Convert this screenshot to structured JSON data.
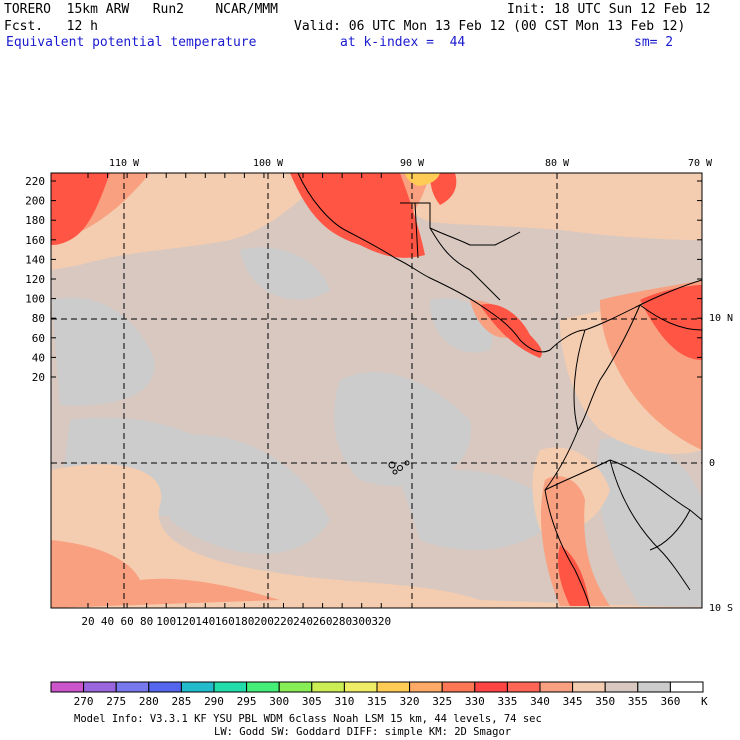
{
  "header": {
    "model": "TORERO  15km ARW   Run2    NCAR/MMM",
    "init": "Init: 18 UTC Sun 12 Feb 12",
    "fcst": "Fcst.   12 h",
    "valid": "Valid: 06 UTC Mon 13 Feb 12 (00 CST Mon 13 Feb 12)",
    "field": "Equivalent potential temperature",
    "level": "at k-index =  44",
    "smooth": "sm= 2"
  },
  "axes": {
    "lon_labels": [
      "110 W",
      "100 W",
      "90 W",
      "80 W",
      "70 W"
    ],
    "lat_labels": [
      "10 N",
      "0",
      "10 S"
    ],
    "y_ticks": [
      "220",
      "200",
      "180",
      "160",
      "140",
      "120",
      "100",
      "80",
      "60",
      "40",
      "20"
    ],
    "x_ticks": [
      "20",
      "40",
      "60",
      "80",
      "100",
      "120",
      "140",
      "160",
      "180",
      "200",
      "220",
      "240",
      "260",
      "280",
      "300",
      "320"
    ]
  },
  "colorbar": {
    "labels": [
      "270",
      "275",
      "280",
      "285",
      "290",
      "295",
      "300",
      "305",
      "310",
      "315",
      "320",
      "325",
      "330",
      "335",
      "340",
      "345",
      "350",
      "355",
      "360"
    ],
    "unit": "K",
    "colors": [
      "#cc55cc",
      "#9966dd",
      "#7777ee",
      "#5566ee",
      "#22bbcc",
      "#22ddaa",
      "#44ee77",
      "#88ee55",
      "#ccee55",
      "#eeee66",
      "#ffcc55",
      "#ffaa66",
      "#ff7755",
      "#ff4444",
      "#ff6655",
      "#f8a080",
      "#f4ccb0",
      "#d8c8c0",
      "#cccccc",
      "#ffffff"
    ]
  },
  "footer": {
    "line1": "Model Info: V3.3.1    KF     YSU PBL  WDM 6class  Noah LSM  15 km,   44 levels,   74 sec",
    "line2": "LW: Godd SW: Goddard DIFF: simple KM: 2D Smagor"
  },
  "map_colors": {
    "base": "#d8c8c0",
    "cool": "#cccccc",
    "warm": "#f4ccb0",
    "hot": "#f8a080",
    "red": "#ff5544",
    "yellow": "#ffcc55"
  }
}
